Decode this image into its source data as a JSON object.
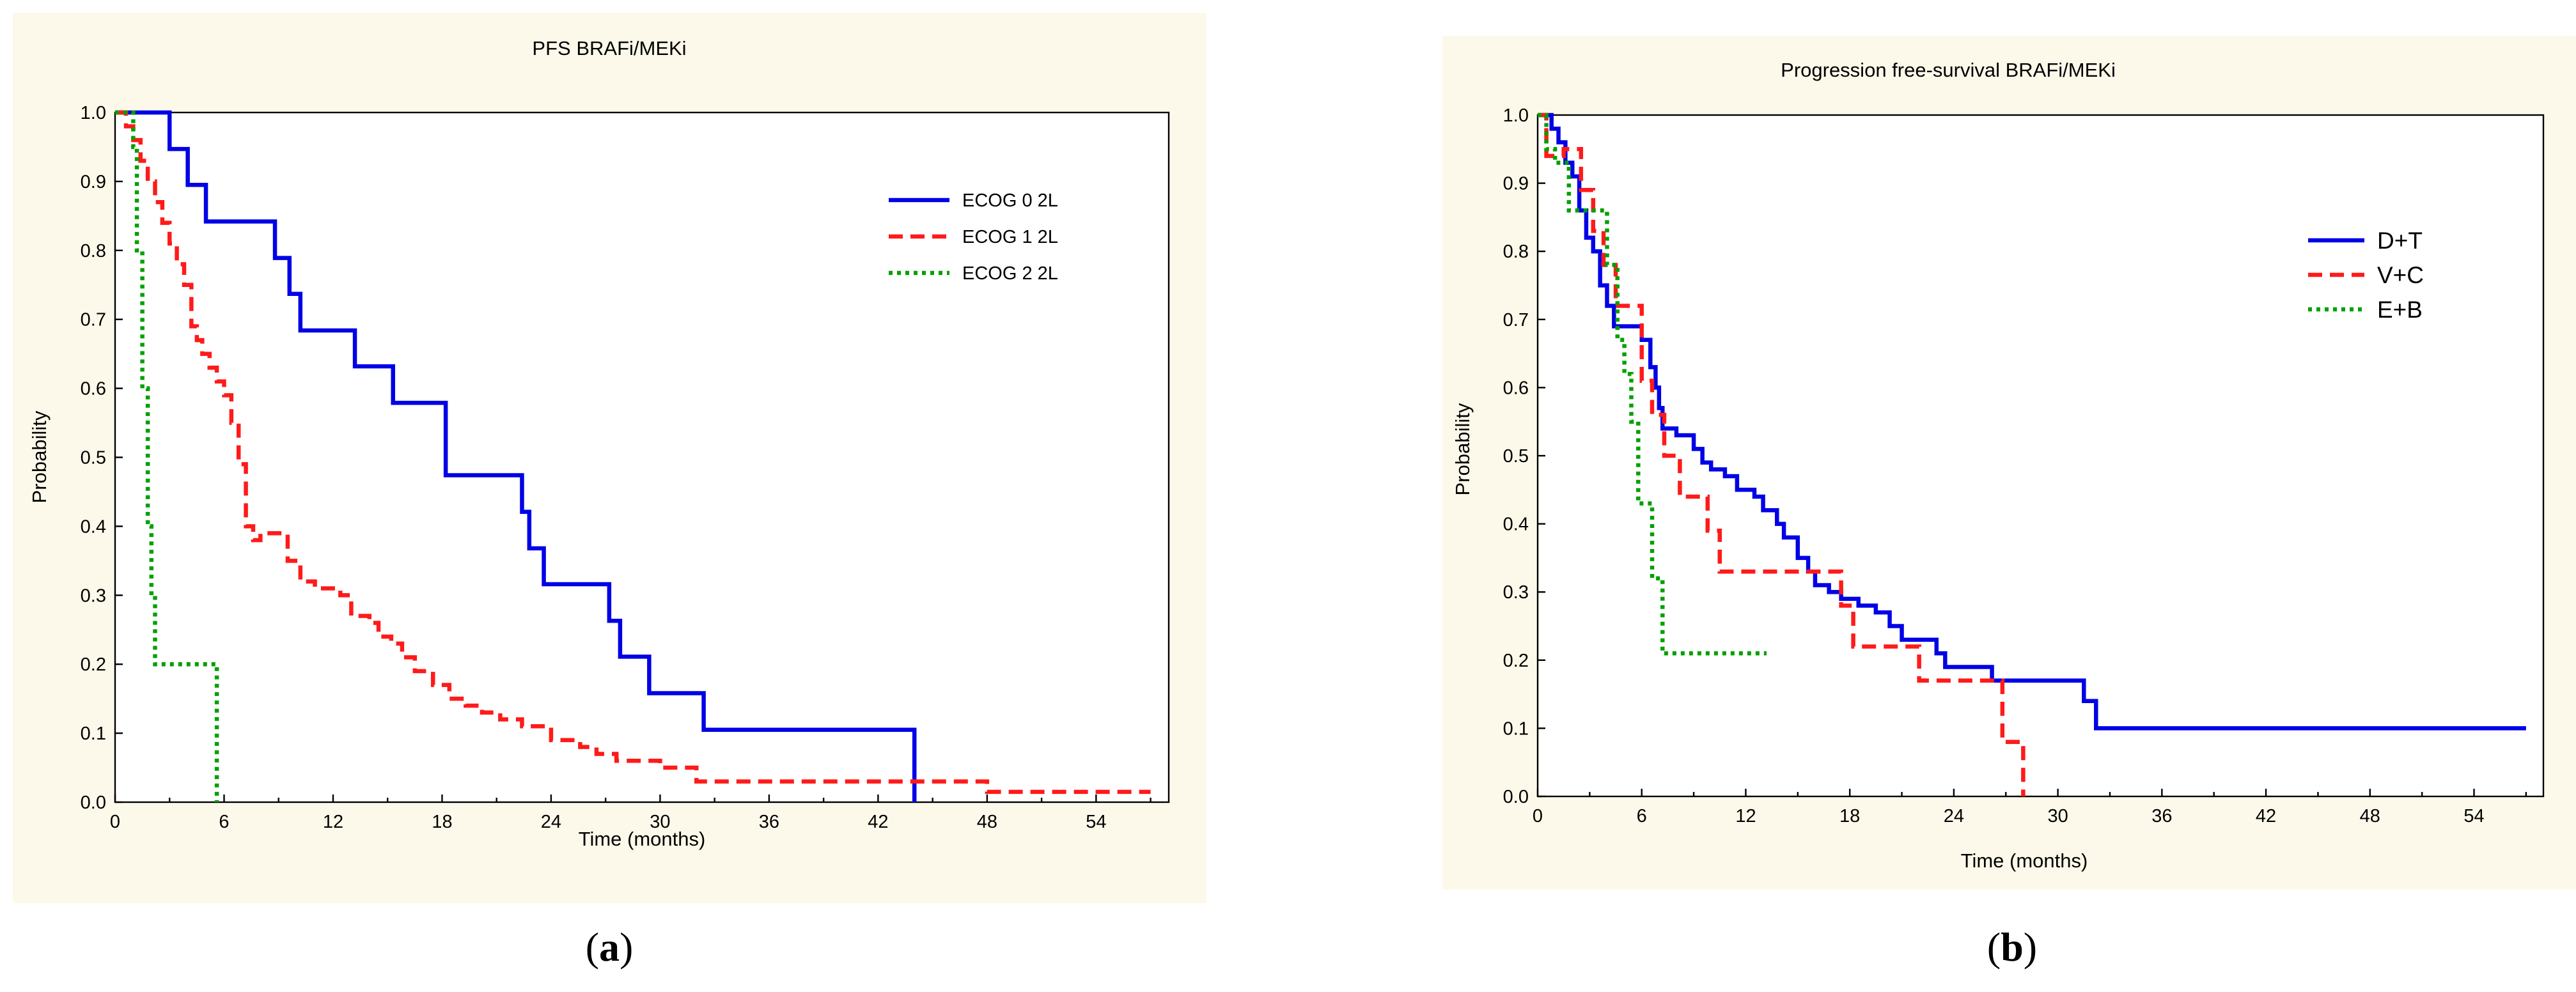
{
  "colors": {
    "panel_bg": "#fdf9ea",
    "blue": "#0000e6",
    "red": "#ff1a1a",
    "green": "#00a000"
  },
  "chart_data": [
    {
      "type": "line",
      "subtype": "kaplan-meier-step",
      "title": "PFS BRAFi/MEKi",
      "xlabel": "Time (months)",
      "ylabel": "Probability",
      "xlim": [
        0,
        58
      ],
      "ylim": [
        0,
        1.0
      ],
      "xticks": [
        "0",
        "6",
        "12",
        "18",
        "24",
        "30",
        "36",
        "42",
        "48",
        "54"
      ],
      "yticks": [
        "0.0",
        "0.1",
        "0.2",
        "0.3",
        "0.4",
        "0.5",
        "0.6",
        "0.7",
        "0.8",
        "0.9",
        "1.0"
      ],
      "legend_position": "upper-right",
      "caption_letter": "a",
      "series": [
        {
          "name": "ECOG 0 2L",
          "style": "solid",
          "color": "#0000e6",
          "x": [
            0,
            3,
            4,
            5,
            8.8,
            9.6,
            10.2,
            13.2,
            15.3,
            18.2,
            22.4,
            22.8,
            23.6,
            27.2,
            27.8,
            29.4,
            32.4,
            44,
            44
          ],
          "y": [
            1.0,
            0.947,
            0.895,
            0.842,
            0.789,
            0.737,
            0.684,
            0.632,
            0.579,
            0.474,
            0.421,
            0.368,
            0.316,
            0.263,
            0.211,
            0.158,
            0.105,
            0.053,
            0.0
          ],
          "end_x": 44
        },
        {
          "name": "ECOG 1 2L",
          "style": "dashed",
          "color": "#ff1a1a",
          "x": [
            0,
            0.6,
            1.0,
            1.4,
            1.8,
            2.2,
            2.6,
            3.0,
            3.4,
            3.8,
            4.2,
            4.5,
            4.8,
            5.2,
            5.6,
            6.0,
            6.4,
            6.8,
            7.2,
            7.6,
            8.0,
            9.5,
            10.2,
            11.0,
            12.4,
            13.0,
            14.0,
            14.5,
            15.2,
            15.8,
            16.5,
            17.5,
            18.4,
            19.3,
            20.2,
            21.2,
            22.4,
            24.0,
            25.6,
            26.5,
            27.6,
            30.0,
            32.0,
            48.0
          ],
          "y": [
            1.0,
            0.98,
            0.96,
            0.93,
            0.9,
            0.87,
            0.84,
            0.81,
            0.78,
            0.75,
            0.69,
            0.67,
            0.65,
            0.63,
            0.61,
            0.59,
            0.55,
            0.49,
            0.4,
            0.38,
            0.39,
            0.35,
            0.32,
            0.31,
            0.3,
            0.27,
            0.26,
            0.24,
            0.23,
            0.21,
            0.19,
            0.17,
            0.15,
            0.14,
            0.13,
            0.12,
            0.11,
            0.09,
            0.08,
            0.07,
            0.06,
            0.05,
            0.03,
            0.015
          ],
          "end_x": 57
        },
        {
          "name": "ECOG 2 2L",
          "style": "dotted",
          "color": "#00a000",
          "x": [
            0,
            1.0,
            1.2,
            1.5,
            1.8,
            2.0,
            2.2,
            5.6,
            5.6
          ],
          "y": [
            1.0,
            0.95,
            0.8,
            0.6,
            0.4,
            0.3,
            0.2,
            0.0,
            0.0
          ],
          "end_x": 5.6
        }
      ]
    },
    {
      "type": "line",
      "subtype": "kaplan-meier-step",
      "title": "Progression free-survival BRAFi/MEKi",
      "xlabel": "Time (months)",
      "ylabel": "Probability",
      "xlim": [
        0,
        58
      ],
      "ylim": [
        0,
        1.0
      ],
      "xticks": [
        "0",
        "6",
        "12",
        "18",
        "24",
        "30",
        "36",
        "42",
        "48",
        "54"
      ],
      "yticks": [
        "0.0",
        "0.1",
        "0.2",
        "0.3",
        "0.4",
        "0.5",
        "0.6",
        "0.7",
        "0.8",
        "0.9",
        "1.0"
      ],
      "legend_position": "right",
      "caption_letter": "b",
      "series": [
        {
          "name": "D+T",
          "style": "solid",
          "color": "#0000e6",
          "x": [
            0,
            0.8,
            1.2,
            1.6,
            2.0,
            2.4,
            2.8,
            3.2,
            3.6,
            4.0,
            4.4,
            5.0,
            6.0,
            6.5,
            6.8,
            7.0,
            7.2,
            7.5,
            8.0,
            9.0,
            9.5,
            10.0,
            10.8,
            11.5,
            12.5,
            13.0,
            13.8,
            14.2,
            15.0,
            15.6,
            16.0,
            16.8,
            17.5,
            18.5,
            19.5,
            20.3,
            21.0,
            23.0,
            23.5,
            26.2,
            30.0,
            31.5,
            32.2
          ],
          "y": [
            1.0,
            0.98,
            0.96,
            0.93,
            0.91,
            0.86,
            0.82,
            0.8,
            0.75,
            0.72,
            0.69,
            0.69,
            0.67,
            0.63,
            0.6,
            0.57,
            0.54,
            0.54,
            0.53,
            0.51,
            0.49,
            0.48,
            0.47,
            0.45,
            0.44,
            0.42,
            0.4,
            0.38,
            0.35,
            0.33,
            0.31,
            0.3,
            0.29,
            0.28,
            0.27,
            0.25,
            0.23,
            0.21,
            0.19,
            0.17,
            0.17,
            0.14,
            0.1
          ],
          "end_x": 57
        },
        {
          "name": "V+C",
          "style": "dashed",
          "color": "#ff1a1a",
          "x": [
            0,
            0.5,
            1.5,
            2.5,
            3.2,
            3.8,
            4.5,
            5.4,
            6.0,
            6.6,
            7.3,
            8.2,
            9.8,
            10.5,
            16.5,
            17.5,
            18.2,
            20.5,
            22.0,
            26.8,
            28.0
          ],
          "y": [
            1.0,
            0.94,
            0.95,
            0.89,
            0.83,
            0.78,
            0.72,
            0.72,
            0.61,
            0.56,
            0.5,
            0.44,
            0.39,
            0.33,
            0.33,
            0.28,
            0.22,
            0.22,
            0.17,
            0.08,
            0.0
          ],
          "end_x": 28.0
        },
        {
          "name": "E+B",
          "style": "dotted",
          "color": "#00a000",
          "x": [
            0,
            0.5,
            1.0,
            1.8,
            3.3,
            4.0,
            4.6,
            5.0,
            5.4,
            5.8,
            6.6,
            7.2
          ],
          "y": [
            1.0,
            0.95,
            0.93,
            0.86,
            0.86,
            0.78,
            0.67,
            0.62,
            0.55,
            0.43,
            0.32,
            0.21
          ],
          "end_x": 13.2
        }
      ]
    }
  ]
}
